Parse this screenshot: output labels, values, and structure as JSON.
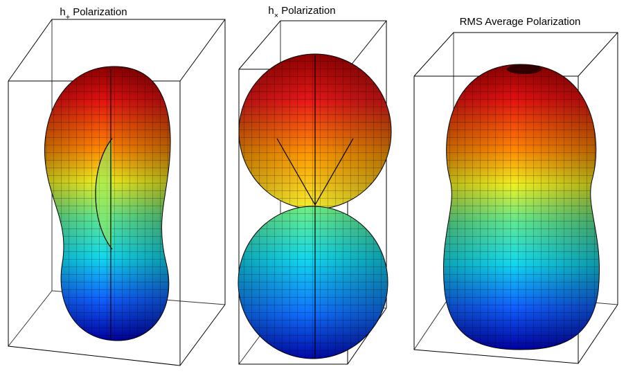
{
  "panels": [
    {
      "title": {
        "base": "h",
        "subscript": "+",
        "rest": "Polarization"
      }
    },
    {
      "title": {
        "base": "h",
        "subscript": "×",
        "rest": "Polarization"
      }
    },
    {
      "title": {
        "text": "RMS Average Polarization"
      }
    }
  ]
}
